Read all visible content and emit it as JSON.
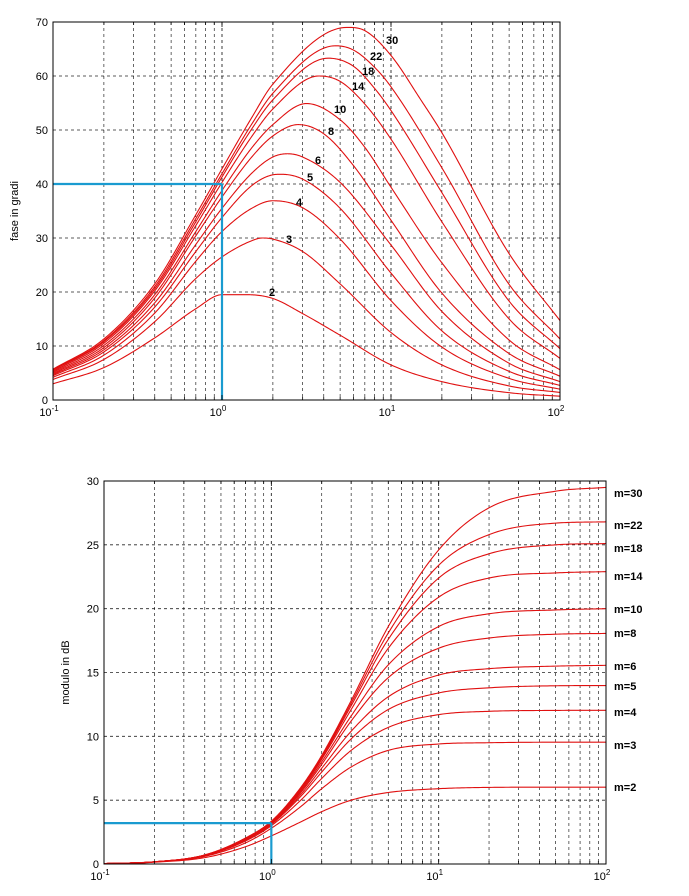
{
  "chart_data": [
    {
      "type": "line",
      "ylabel": "fase in gradi",
      "xlabel": "",
      "x_scale": "log",
      "xlim": [
        0.1,
        100
      ],
      "ylim": [
        0,
        70
      ],
      "grid": true,
      "xticks": [
        "10",
        "10",
        "10",
        "10"
      ],
      "xtick_exponents": [
        "-1",
        "0",
        "1",
        "2"
      ],
      "yticks": [
        "0",
        "10",
        "20",
        "30",
        "40",
        "50",
        "60",
        "70"
      ],
      "series": [
        {
          "name": "2",
          "x": [
            0.1,
            0.2,
            0.4,
            0.7,
            1,
            1.414,
            2,
            3,
            5,
            10,
            20,
            50,
            100
          ],
          "y": [
            3,
            6,
            11.5,
            16.9,
            19.5,
            19.5,
            18.8,
            16,
            12,
            6.5,
            3.4,
            1.35,
            0.7
          ]
        },
        {
          "name": "3",
          "x": [
            0.1,
            0.2,
            0.4,
            0.7,
            1,
            1.5,
            1.732,
            2,
            3,
            5,
            10,
            20,
            50,
            100
          ],
          "y": [
            3.8,
            7.5,
            14.5,
            22.5,
            26.5,
            29.5,
            30,
            29.8,
            27.5,
            21.5,
            12.5,
            6.5,
            2.6,
            1.4
          ]
        },
        {
          "name": "4",
          "x": [
            0.1,
            0.2,
            0.4,
            0.7,
            1,
            1.5,
            2,
            3,
            5,
            10,
            20,
            50,
            100
          ],
          "y": [
            4.2,
            8.3,
            16.1,
            25.7,
            31.2,
            35.5,
            36.9,
            35.6,
            29.8,
            18.4,
            9.8,
            4.0,
            2.0
          ]
        },
        {
          "name": "5",
          "x": [
            0.1,
            0.2,
            0.4,
            0.7,
            1,
            1.5,
            2,
            2.236,
            3,
            5,
            10,
            20,
            50,
            100
          ],
          "y": [
            4.5,
            8.9,
            17.2,
            27.5,
            33.8,
            39.7,
            41.7,
            41.8,
            40.9,
            35.5,
            23.5,
            12.8,
            5.3,
            2.7
          ]
        },
        {
          "name": "6",
          "x": [
            0.1,
            0.2,
            0.4,
            0.7,
            1,
            1.5,
            2,
            2.449,
            3,
            5,
            10,
            20,
            50,
            100
          ],
          "y": [
            4.7,
            9.3,
            18,
            28.8,
            35.5,
            42,
            45,
            45.6,
            45,
            40.3,
            28.7,
            16.4,
            6.8,
            3.4
          ]
        },
        {
          "name": "8",
          "x": [
            0.1,
            0.2,
            0.4,
            0.7,
            1,
            1.5,
            2,
            2.828,
            4,
            6,
            10,
            20,
            50,
            100
          ],
          "y": [
            4.9,
            9.7,
            18.9,
            30.4,
            37.6,
            45.0,
            48.9,
            51.0,
            49.3,
            43.4,
            33.3,
            19.8,
            8.6,
            4.4
          ]
        },
        {
          "name": "10",
          "x": [
            0.1,
            0.2,
            0.4,
            0.7,
            1,
            1.5,
            2,
            3.162,
            5,
            7,
            10,
            20,
            50,
            100
          ],
          "y": [
            5.1,
            10.1,
            19.5,
            31.2,
            38.8,
            46.7,
            51.0,
            54.9,
            51.9,
            46.8,
            39.4,
            25.4,
            11.1,
            5.6
          ]
        },
        {
          "name": "14",
          "x": [
            0.1,
            0.2,
            0.4,
            0.7,
            1,
            1.5,
            2,
            3.742,
            5,
            7,
            10,
            20,
            50,
            100
          ],
          "y": [
            5.3,
            10.5,
            20.2,
            32.3,
            40.3,
            48.8,
            53.9,
            60.0,
            59.0,
            54.8,
            48.3,
            33.0,
            15.0,
            7.7
          ]
        },
        {
          "name": "18",
          "x": [
            0.1,
            0.2,
            0.4,
            0.7,
            1,
            1.5,
            2,
            4.243,
            6,
            8,
            10,
            20,
            50,
            100
          ],
          "y": [
            5.5,
            10.8,
            20.6,
            33.0,
            41.3,
            50.2,
            55.6,
            63.3,
            61.8,
            57.7,
            53.6,
            38.4,
            18.3,
            9.5
          ]
        },
        {
          "name": "22",
          "x": [
            0.1,
            0.2,
            0.4,
            0.7,
            1,
            1.5,
            2,
            4.69,
            6,
            8,
            10,
            20,
            50,
            100
          ],
          "y": [
            5.6,
            11.0,
            21.0,
            33.6,
            41.9,
            51.1,
            56.8,
            65.6,
            64.8,
            61.6,
            58.0,
            43.0,
            21.4,
            11.3
          ]
        },
        {
          "name": "30",
          "x": [
            0.1,
            0.2,
            0.4,
            0.7,
            1,
            1.5,
            2,
            5.477,
            7,
            10,
            15,
            20,
            50,
            100
          ],
          "y": [
            5.7,
            11.3,
            21.5,
            34.3,
            42.8,
            52.3,
            58.5,
            69.0,
            68.4,
            63.8,
            55.6,
            49.5,
            27.1,
            14.7
          ]
        }
      ],
      "highlight": {
        "x": 1,
        "y": 40,
        "color": "#1a9bd0"
      },
      "line_color": "#e01010"
    },
    {
      "type": "line",
      "ylabel": "modulo in dB",
      "xlabel": "",
      "x_scale": "log",
      "xlim": [
        0.1,
        100
      ],
      "ylim": [
        0,
        30
      ],
      "grid": true,
      "xticks": [
        "10",
        "10",
        "10",
        "10"
      ],
      "xtick_exponents": [
        "-1",
        "0",
        "1",
        "2"
      ],
      "yticks": [
        "0",
        "5",
        "10",
        "15",
        "20",
        "25",
        "30"
      ],
      "series": [
        {
          "name": "m=2",
          "x": [
            0.1,
            0.2,
            0.4,
            0.7,
            1,
            1.5,
            2,
            3,
            5,
            10,
            20,
            50,
            100
          ],
          "y": [
            0.02,
            0.14,
            0.5,
            1.35,
            2.2,
            3.3,
            4.1,
            5.0,
            5.6,
            5.9,
            6.0,
            6.02,
            6.02
          ]
        },
        {
          "name": "m=3",
          "x": [
            0.1,
            0.2,
            0.4,
            0.7,
            1,
            1.5,
            2,
            3,
            5,
            10,
            20,
            50,
            100
          ],
          "y": [
            0.03,
            0.16,
            0.6,
            1.65,
            2.8,
            4.5,
            5.9,
            7.6,
            8.9,
            9.4,
            9.5,
            9.54,
            9.54
          ]
        },
        {
          "name": "m=4",
          "x": [
            0.1,
            0.2,
            0.4,
            0.7,
            1,
            1.5,
            2,
            3,
            5,
            10,
            20,
            50,
            100
          ],
          "y": [
            0.03,
            0.17,
            0.64,
            1.8,
            3.0,
            5.0,
            6.7,
            8.9,
            10.7,
            11.7,
            11.96,
            12.03,
            12.04
          ]
        },
        {
          "name": "m=5",
          "x": [
            0.1,
            0.2,
            0.4,
            0.7,
            1,
            1.5,
            2,
            3,
            5,
            10,
            20,
            50,
            100
          ],
          "y": [
            0.03,
            0.17,
            0.66,
            1.87,
            3.1,
            5.3,
            7.2,
            9.8,
            12.1,
            13.4,
            13.8,
            13.96,
            13.98
          ]
        },
        {
          "name": "m=6",
          "x": [
            0.1,
            0.2,
            0.4,
            0.7,
            1,
            1.5,
            2,
            3,
            5,
            10,
            20,
            50,
            100
          ],
          "y": [
            0.03,
            0.17,
            0.67,
            1.9,
            3.15,
            5.45,
            7.5,
            10.4,
            13.1,
            14.8,
            15.3,
            15.5,
            15.56
          ]
        },
        {
          "name": "m=8",
          "x": [
            0.1,
            0.2,
            0.4,
            0.7,
            1,
            1.5,
            2,
            3,
            5,
            10,
            20,
            50,
            100
          ],
          "y": [
            0.03,
            0.17,
            0.68,
            1.95,
            3.2,
            5.6,
            7.8,
            11.2,
            14.6,
            16.9,
            17.7,
            18.0,
            18.06
          ]
        },
        {
          "name": "m=10",
          "x": [
            0.1,
            0.2,
            0.4,
            0.7,
            1,
            1.5,
            2,
            3,
            5,
            10,
            20,
            50,
            100
          ],
          "y": [
            0.03,
            0.17,
            0.69,
            1.97,
            3.25,
            5.7,
            8.0,
            11.6,
            15.6,
            18.6,
            19.6,
            19.9,
            20.0
          ]
        },
        {
          "name": "m=14",
          "x": [
            0.1,
            0.2,
            0.4,
            0.7,
            1,
            1.5,
            2,
            3,
            5,
            10,
            20,
            50,
            100
          ],
          "y": [
            0.03,
            0.17,
            0.7,
            2.0,
            3.3,
            5.8,
            8.2,
            12.1,
            16.9,
            20.9,
            22.4,
            22.8,
            22.9
          ]
        },
        {
          "name": "m=18",
          "x": [
            0.1,
            0.2,
            0.4,
            0.7,
            1,
            1.5,
            2,
            3,
            5,
            10,
            20,
            50,
            100
          ],
          "y": [
            0.03,
            0.17,
            0.7,
            2.01,
            3.32,
            5.9,
            8.3,
            12.4,
            17.6,
            22.4,
            24.3,
            25.0,
            25.1
          ]
        },
        {
          "name": "m=22",
          "x": [
            0.1,
            0.2,
            0.4,
            0.7,
            1,
            1.5,
            2,
            3,
            5,
            10,
            20,
            50,
            100
          ],
          "y": [
            0.03,
            0.17,
            0.7,
            2.02,
            3.33,
            5.95,
            8.4,
            12.6,
            18.1,
            23.4,
            25.8,
            26.7,
            26.8
          ]
        },
        {
          "name": "m=30",
          "x": [
            0.1,
            0.2,
            0.4,
            0.7,
            1,
            1.5,
            2,
            3,
            5,
            10,
            20,
            50,
            100
          ],
          "y": [
            0.03,
            0.17,
            0.71,
            2.03,
            3.35,
            6.0,
            8.5,
            12.8,
            18.6,
            24.6,
            27.9,
            29.2,
            29.5
          ]
        }
      ],
      "highlight": {
        "x": 1,
        "y": 3.2,
        "color": "#1a9bd0"
      },
      "line_color": "#e01010"
    }
  ]
}
